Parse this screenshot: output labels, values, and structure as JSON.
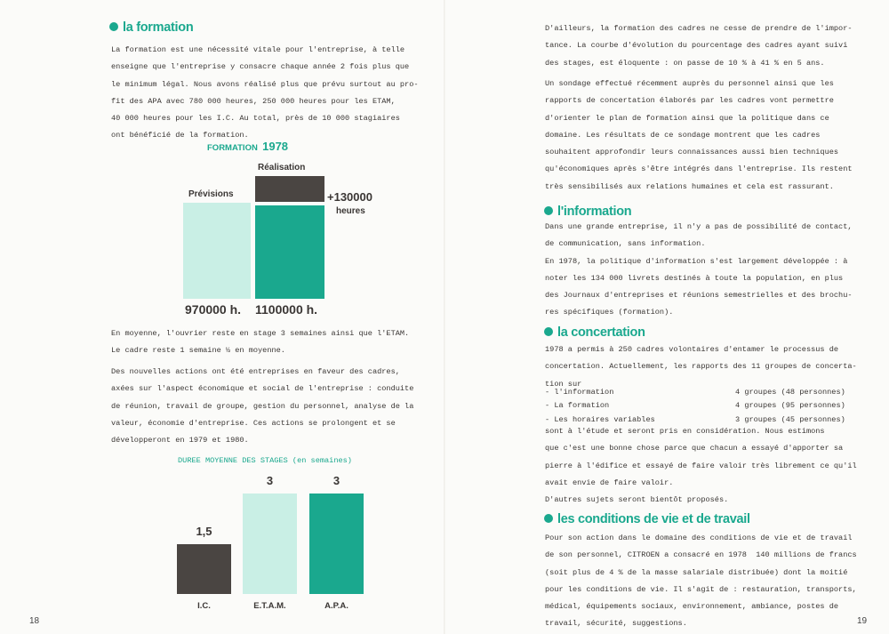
{
  "left_page": {
    "page_number": "18",
    "formation": {
      "heading": "la formation",
      "lines": [
        "La formation est une nécessité vitale pour l'entreprise, à telle",
        "enseigne que l'entreprise y consacre chaque année 2 fois plus que",
        "le minimum légal. Nous avons réalisé plus que prévu surtout au pro-",
        "fit des APA avec 780 000 heures, 250 000 heures pour les ETAM,",
        "40 000 heures pour les I.C. Au total, près de 10 000 stagiaires",
        "ont bénéficié de la formation."
      ]
    },
    "para2": [
      "En moyenne, l'ouvrier reste en stage 3 semaines ainsi que l'ETAM.",
      "Le cadre reste 1 semaine ½ en moyenne."
    ],
    "para3": [
      "Des nouvelles actions ont été entreprises en faveur des cadres,",
      "axées sur l'aspect économique et social de l'entreprise : conduite",
      "de réunion, travail de groupe, gestion du personnel, analyse de la",
      "valeur, économie d'entreprise. Ces actions se prolongent et se",
      "développeront en 1979 et 1980."
    ]
  },
  "chart_data": [
    {
      "type": "bar",
      "title": "FORMATION",
      "title_year": "1978",
      "categories": [
        "Prévisions",
        "Réalisation"
      ],
      "values": [
        970000,
        1100000
      ],
      "value_labels": [
        "970000 h.",
        "1100000 h."
      ],
      "annotation": {
        "value": "+130000",
        "unit": "heures"
      },
      "colors": {
        "previsions": "#c9efe5",
        "realisation": "#1aa88e",
        "increase": "#4a4542"
      }
    },
    {
      "type": "bar",
      "title": "DUREE MOYENNE DES STAGES (en semaines)",
      "categories": [
        "I.C.",
        "E.T.A.M.",
        "A.P.A."
      ],
      "values": [
        1.5,
        3,
        3
      ],
      "value_labels": [
        "1,5",
        "3",
        "3"
      ],
      "colors": [
        "#4a4542",
        "#c9efe5",
        "#1aa88e"
      ]
    }
  ],
  "right_page": {
    "page_number": "19",
    "para1": [
      "D'ailleurs, la formation des cadres ne cesse de prendre de l'impor-",
      "tance. La courbe d'évolution du pourcentage des cadres ayant suivi",
      "des stages, est éloquente : on passe de 10 % à 41 % en 5 ans."
    ],
    "para2": [
      "Un sondage effectué récemment auprès du personnel ainsi que les",
      "rapports de concertation élaborés par les cadres vont permettre",
      "d'orienter le plan de formation ainsi que la politique dans ce",
      "domaine. Les résultats de ce sondage montrent que les cadres",
      "souhaitent approfondir leurs connaissances aussi bien techniques",
      "qu'économiques après s'être intégrés dans l'entreprise. Ils restent",
      "très sensibilisés aux relations humaines et cela est rassurant."
    ],
    "information": {
      "heading": "l'information",
      "lines": [
        "Dans une grande entreprise, il n'y a pas de possibilité de contact,",
        "de communication, sans information.",
        "En 1978, la politique d'information s'est largement développée : à",
        "noter les 134 000 livrets destinés à toute la population, en plus",
        "des Journaux d'entreprises et réunions semestrielles et des brochu-",
        "res spécifiques (formation)."
      ]
    },
    "concertation": {
      "heading": "la concertation",
      "intro": [
        "1978 a permis à 250 cadres volontaires d'entamer le processus de",
        "concertation. Actuellement, les rapports des 11 groupes de concerta-",
        "tion sur"
      ],
      "groups": [
        {
          "topic": "- l'information",
          "count": "4 groupes (48 personnes)"
        },
        {
          "topic": "- La formation",
          "count": "4 groupes (95 personnes)"
        },
        {
          "topic": "- Les horaires variables",
          "count": "3 groupes (45 personnes)"
        }
      ],
      "outro": [
        "sont à l'étude et seront pris en considération. Nous estimons",
        "que c'est une bonne chose parce que chacun a essayé d'apporter sa",
        "pierre à l'édifice et essayé de faire valoir très librement ce qu'il",
        "avait envie de faire valoir.",
        "D'autres sujets seront bientôt proposés."
      ]
    },
    "conditions": {
      "heading": "les conditions de vie et de travail",
      "lines": [
        "Pour son action dans le domaine des conditions de vie et de travail",
        "de son personnel, CITROEN a consacré en 1978  140 millions de francs",
        "(soit plus de 4 % de la masse salariale distribuée) dont la moitié",
        "pour les conditions de vie. Il s'agit de : restauration, transports,",
        "médical, équipements sociaux, environnement, ambiance, postes de",
        "travail, sécurité, suggestions."
      ]
    }
  }
}
